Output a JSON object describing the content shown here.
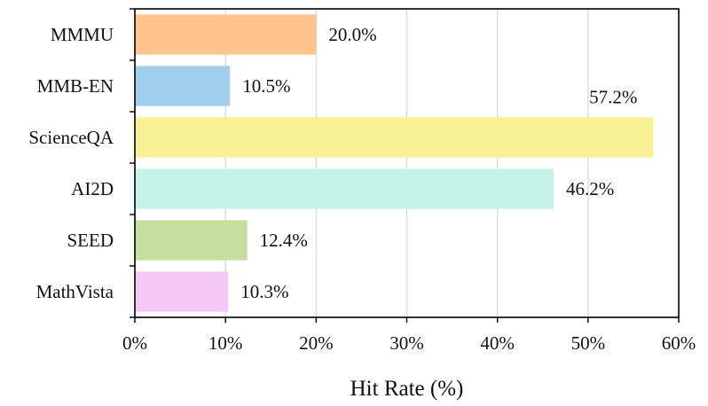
{
  "chart_data": {
    "type": "bar",
    "orientation": "horizontal",
    "categories": [
      "MMMU",
      "MMB-EN",
      "ScienceQA",
      "AI2D",
      "SEED",
      "MathVista"
    ],
    "values": [
      20.0,
      10.5,
      57.2,
      46.2,
      12.4,
      10.3
    ],
    "value_labels": [
      "20.0%",
      "10.5%",
      "57.2%",
      "46.2%",
      "12.4%",
      "10.3%"
    ],
    "colors": [
      "#ffc48e",
      "#a0cfee",
      "#f7f193",
      "#c4f2e7",
      "#c5df9f",
      "#f5c7f7"
    ],
    "xlabel": "Hit Rate (%)",
    "ylabel": "",
    "title": "",
    "xlim": [
      0,
      60
    ],
    "xticks": [
      0,
      10,
      20,
      30,
      40,
      50,
      60
    ],
    "xtick_labels": [
      "0%",
      "10%",
      "20%",
      "30%",
      "40%",
      "50%",
      "60%"
    ],
    "grid": "vertical",
    "legend": "none"
  }
}
